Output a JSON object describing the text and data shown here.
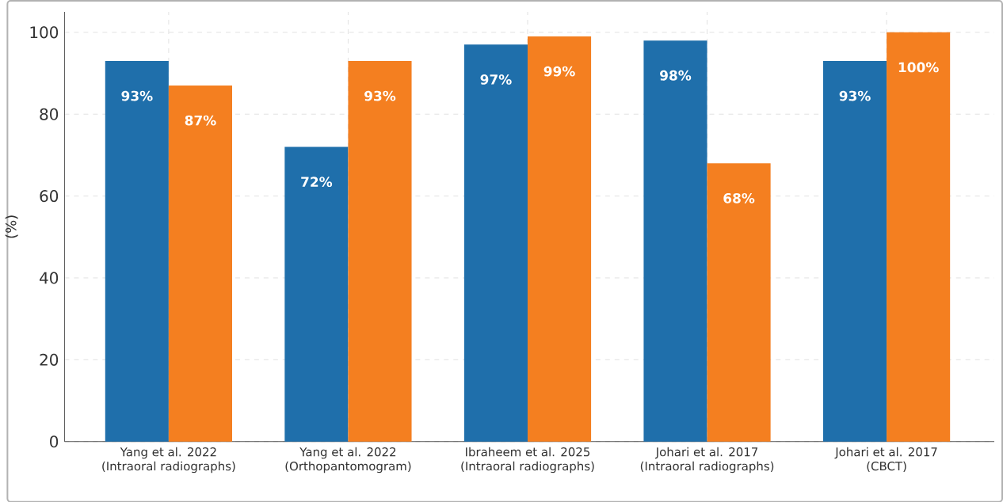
{
  "chart_data": {
    "type": "bar",
    "ylabel": "(%)",
    "categories": [
      "Yang et al. 2022\n(Intraoral radiographs)",
      "Yang et al. 2022\n(Orthopantomogram)",
      "Ibraheem et al. 2025\n(Intraoral radiographs)",
      "Johari et al. 2017\n(Intraoral radiographs)",
      "Johari et al. 2017\n(CBCT)"
    ],
    "series": [
      {
        "color": "#1f6fab",
        "values": [
          93,
          72,
          97,
          98,
          93
        ],
        "value_labels": [
          "93%",
          "72%",
          "97%",
          "98%",
          "93%"
        ]
      },
      {
        "color": "#f47f20",
        "values": [
          87,
          93,
          99,
          68,
          100
        ],
        "value_labels": [
          "87%",
          "93%",
          "99%",
          "68%",
          "100%"
        ]
      }
    ],
    "ylim": [
      0,
      105
    ],
    "yticks": [
      0,
      20,
      40,
      60,
      80,
      100
    ],
    "grid": true
  }
}
